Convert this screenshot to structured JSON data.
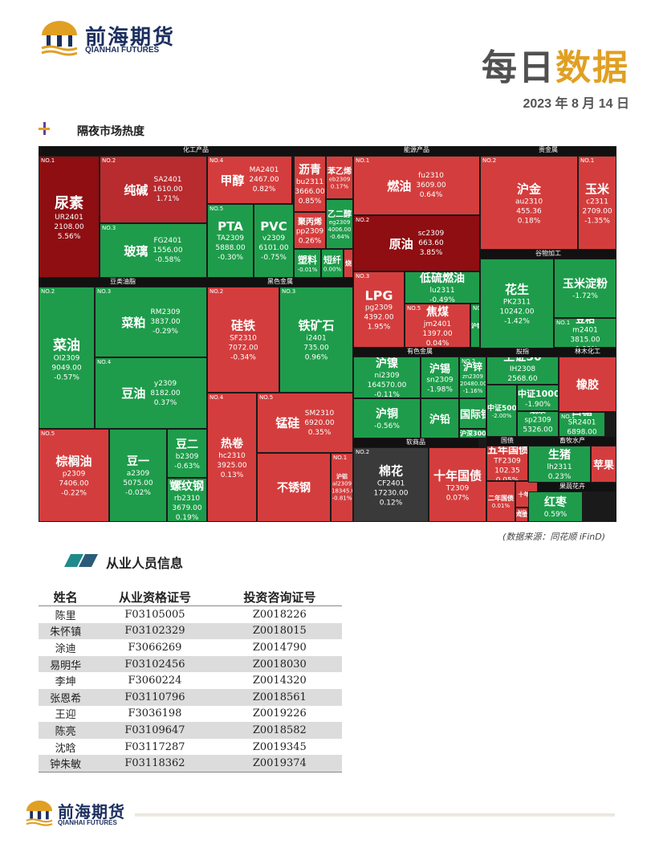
{
  "header": {
    "brand_cn": "前海期货",
    "brand_en": "QIANHAI FUTURES",
    "title_part1": "每日",
    "title_part2": "数据",
    "date": "2023 年 8 月 14 日"
  },
  "colors": {
    "brand_navy": "#1c2f5e",
    "accent_gold": "#e0a024",
    "up_red": "#d43d3d",
    "down_green": "#1e9c4b",
    "teal": "#1f8a8a"
  },
  "section1": {
    "title": "隔夜市场热度"
  },
  "treemap": {
    "sectors": [
      "化工产品",
      "能源产品",
      "贵金属",
      "豆类油脂",
      "黑色金属",
      "谷物加工",
      "有色金属",
      "股指",
      "林木化工",
      "软商品",
      "国债",
      "畜牧水产",
      "果蔬花卉"
    ],
    "tiles": [
      {
        "rank": "NO.1",
        "name": "尿素",
        "code": "UR2401",
        "price": "2108.00",
        "chg": "5.56%"
      },
      {
        "rank": "NO.2",
        "name": "纯碱",
        "code": "SA2401",
        "price": "1610.00",
        "chg": "1.71%"
      },
      {
        "rank": "NO.3",
        "name": "玻璃",
        "code": "FG2401",
        "price": "1556.00",
        "chg": "-0.58%"
      },
      {
        "rank": "NO.4",
        "name": "甲醇",
        "code": "MA2401",
        "price": "2467.00",
        "chg": "0.82%"
      },
      {
        "rank": "NO.5",
        "name": "PTA",
        "code": "TA2309",
        "price": "5888.00",
        "chg": "-0.30%"
      },
      {
        "rank": "",
        "name": "PVC",
        "code": "v2309",
        "price": "6101.00",
        "chg": "-0.75%"
      },
      {
        "rank": "",
        "name": "沥青",
        "code": "bu2311",
        "price": "3666.00",
        "chg": "0.85%"
      },
      {
        "rank": "",
        "name": "苯乙烯",
        "code": "eb2309",
        "price": "",
        "chg": "0.17%"
      },
      {
        "rank": "",
        "name": "聚丙烯",
        "code": "pp2309",
        "price": "",
        "chg": "0.26%"
      },
      {
        "rank": "",
        "name": "乙二醇",
        "code": "eg2309",
        "price": "4006.00",
        "chg": "-0.64%"
      },
      {
        "rank": "",
        "name": "塑料",
        "code": "",
        "price": "",
        "chg": "-0.01%"
      },
      {
        "rank": "",
        "name": "短纤",
        "code": "",
        "price": "",
        "chg": "0.00%"
      },
      {
        "rank": "",
        "name": "烧",
        "code": "",
        "price": "",
        "chg": ""
      },
      {
        "rank": "NO.1",
        "name": "燃油",
        "code": "fu2310",
        "price": "3609.00",
        "chg": "0.64%"
      },
      {
        "rank": "NO.2",
        "name": "原油",
        "code": "sc2309",
        "price": "663.60",
        "chg": "3.85%"
      },
      {
        "rank": "NO.3",
        "name": "LPG",
        "code": "pg2309",
        "price": "4392.00",
        "chg": "1.95%"
      },
      {
        "rank": "",
        "name": "低硫燃油",
        "code": "lu2311",
        "price": "",
        "chg": "-0.49%"
      },
      {
        "rank": "NO.5",
        "name": "焦煤",
        "code": "jm2401",
        "price": "1397.00",
        "chg": "0.04%"
      },
      {
        "rank": "NO.1",
        "name": "沪银",
        "code": "ag2310",
        "price": "5602.00",
        "chg": "0.09%"
      },
      {
        "rank": "NO.2",
        "name": "沪金",
        "code": "au2310",
        "price": "455.36",
        "chg": "0.18%"
      },
      {
        "rank": "NO.1",
        "name": "玉米",
        "code": "c2311",
        "price": "2709.00",
        "chg": "-1.35%"
      },
      {
        "rank": "",
        "name": "花生",
        "code": "PK2311",
        "price": "10242.00",
        "chg": "-1.42%"
      },
      {
        "rank": "",
        "name": "玉米淀粉",
        "code": "",
        "price": "",
        "chg": "-1.72%"
      },
      {
        "rank": "NO.1",
        "name": "豆粕",
        "code": "m2401",
        "price": "3815.00",
        "chg": "-0.88%"
      },
      {
        "rank": "NO.2",
        "name": "菜油",
        "code": "OI2309",
        "price": "9049.00",
        "chg": "-0.57%"
      },
      {
        "rank": "NO.3",
        "name": "菜粕",
        "code": "RM2309",
        "price": "3837.00",
        "chg": "-0.29%"
      },
      {
        "rank": "NO.4",
        "name": "豆油",
        "code": "y2309",
        "price": "8182.00",
        "chg": "0.37%"
      },
      {
        "rank": "NO.5",
        "name": "棕榈油",
        "code": "p2309",
        "price": "7406.00",
        "chg": "-0.22%"
      },
      {
        "rank": "",
        "name": "豆一",
        "code": "a2309",
        "price": "5075.00",
        "chg": "-0.02%"
      },
      {
        "rank": "",
        "name": "豆二",
        "code": "b2309",
        "price": "",
        "chg": "-0.63%"
      },
      {
        "rank": "NO.1",
        "name": "螺纹钢",
        "code": "rb2310",
        "price": "3679.00",
        "chg": "0.19%"
      },
      {
        "rank": "NO.2",
        "name": "硅铁",
        "code": "SF2310",
        "price": "7072.00",
        "chg": "-0.34%"
      },
      {
        "rank": "NO.3",
        "name": "铁矿石",
        "code": "i2401",
        "price": "735.00",
        "chg": "0.96%"
      },
      {
        "rank": "NO.4",
        "name": "热卷",
        "code": "hc2310",
        "price": "3925.00",
        "chg": "0.13%"
      },
      {
        "rank": "NO.5",
        "name": "锰硅",
        "code": "SM2310",
        "price": "6920.00",
        "chg": "0.35%"
      },
      {
        "rank": "",
        "name": "不锈钢",
        "code": "",
        "price": "",
        "chg": ""
      },
      {
        "rank": "NO.1",
        "name": "沪铝",
        "code": "al2309",
        "price": "18345.00",
        "chg": "-0.81%"
      },
      {
        "rank": "",
        "name": "沪镍",
        "code": "ni2309",
        "price": "164570.00",
        "chg": "-0.11%"
      },
      {
        "rank": "",
        "name": "沪锡",
        "code": "sn2309",
        "price": "",
        "chg": "-1.98%"
      },
      {
        "rank": "NO.2",
        "name": "沪锌",
        "code": "zn2309",
        "price": "20480.00",
        "chg": "-1.16%"
      },
      {
        "rank": "",
        "name": "沪铜",
        "code": "",
        "price": "",
        "chg": "-0.56%"
      },
      {
        "rank": "",
        "name": "沪铅",
        "code": "",
        "price": "",
        "chg": ""
      },
      {
        "rank": "",
        "name": "国际铜",
        "code": "",
        "price": "",
        "chg": ""
      },
      {
        "rank": "",
        "name": "沪深300",
        "code": "",
        "price": "",
        "chg": ""
      },
      {
        "rank": "",
        "name": "上证50",
        "code": "IH2308",
        "price": "2568.60",
        "chg": "-2.51%"
      },
      {
        "rank": "",
        "name": "中证500",
        "code": "",
        "price": "",
        "chg": "-2.00%"
      },
      {
        "rank": "",
        "name": "中证1000",
        "code": "",
        "price": "",
        "chg": "-1.90%"
      },
      {
        "rank": "",
        "name": "纸浆",
        "code": "sp2309",
        "price": "5326.00",
        "chg": "0.19%"
      },
      {
        "rank": "",
        "name": "橡胶",
        "code": "",
        "price": "",
        "chg": ""
      },
      {
        "rank": "NO.1",
        "name": "白糖",
        "code": "SR2401",
        "price": "6898.00",
        "chg": "0.00%"
      },
      {
        "rank": "NO.2",
        "name": "棉花",
        "code": "CF2401",
        "price": "17230.00",
        "chg": "0.12%"
      },
      {
        "rank": "",
        "name": "十年国债",
        "code": "T2309",
        "price": "",
        "chg": "0.07%"
      },
      {
        "rank": "",
        "name": "五年国债",
        "code": "TF2309",
        "price": "102.35",
        "chg": "0.05%"
      },
      {
        "rank": "",
        "name": "二年国债",
        "code": "",
        "price": "",
        "chg": "0.01%"
      },
      {
        "rank": "",
        "name": "十年国",
        "code": "",
        "price": "",
        "chg": ""
      },
      {
        "rank": "NO.1",
        "name": "鸡蛋",
        "code": "",
        "price": "",
        "chg": ""
      },
      {
        "rank": "",
        "name": "生猪",
        "code": "lh2311",
        "price": "",
        "chg": "0.23%"
      },
      {
        "rank": "",
        "name": "苹果",
        "code": "",
        "price": "",
        "chg": ""
      },
      {
        "rank": "",
        "name": "红枣",
        "code": "",
        "price": "",
        "chg": "0.59%"
      }
    ]
  },
  "source_note": "(数据来源：同花顺 iFinD)",
  "section2": {
    "title": "从业人员信息",
    "headers": [
      "姓名",
      "从业资格证号",
      "投资咨询证号"
    ],
    "rows": [
      [
        "陈里",
        "F03105005",
        "Z0018226"
      ],
      [
        "朱怀镇",
        "F03102329",
        "Z0018015"
      ],
      [
        "涂迪",
        "F3066269",
        "Z0014790"
      ],
      [
        "易明华",
        "F03102456",
        "Z0018030"
      ],
      [
        "李坤",
        "F3060224",
        "Z0014320"
      ],
      [
        "张恩希",
        "F03110796",
        "Z0018561"
      ],
      [
        "王迎",
        "F3036198",
        "Z0019226"
      ],
      [
        "陈亮",
        "F03109647",
        "Z0018582"
      ],
      [
        "沈晗",
        "F03117287",
        "Z0019345"
      ],
      [
        "钟朱敏",
        "F03118362",
        "Z0019374"
      ]
    ]
  },
  "footer": {
    "brand_cn": "前海期货",
    "brand_en": "QIANHAI FUTURES"
  }
}
